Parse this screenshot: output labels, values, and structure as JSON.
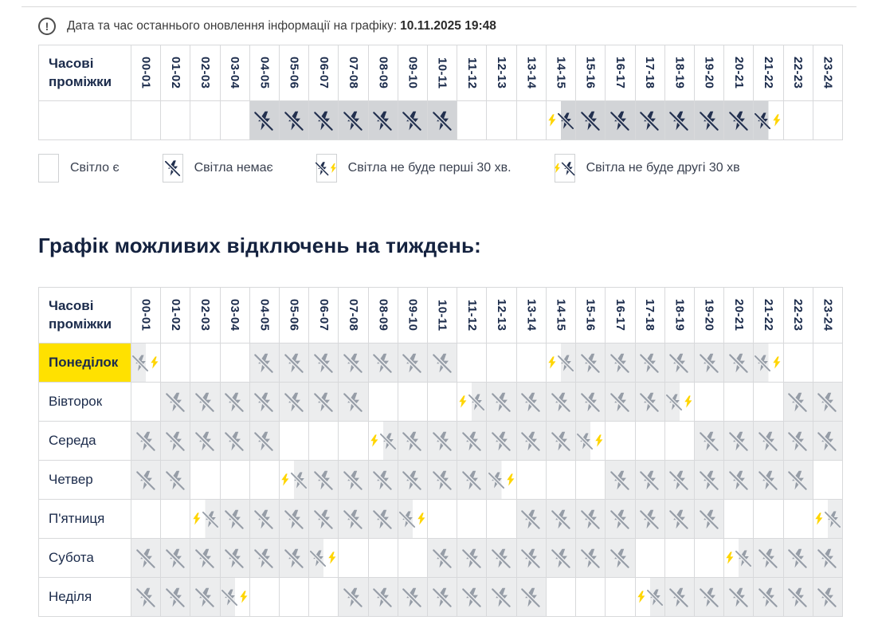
{
  "info": {
    "icon": "info-exclamation-icon",
    "label": "Дата та час останнього оновлення інформації на графіку:",
    "datetime": "10.11.2025 19:48"
  },
  "time_header_label": "Часові проміжки",
  "time_slots": [
    "00-01",
    "01-02",
    "02-03",
    "03-04",
    "04-05",
    "05-06",
    "06-07",
    "07-08",
    "08-09",
    "09-10",
    "10-11",
    "11-12",
    "12-13",
    "13-14",
    "14-15",
    "15-16",
    "16-17",
    "17-18",
    "18-19",
    "19-20",
    "20-21",
    "21-22",
    "22-23",
    "23-24"
  ],
  "state_codes": {
    "on": "light on",
    "off": "no light whole hour",
    "f30": "no light first 30 min",
    "s30": "no light second 30 min"
  },
  "today_schedule": {
    "states": [
      "on",
      "on",
      "on",
      "on",
      "off",
      "off",
      "off",
      "off",
      "off",
      "off",
      "off",
      "on",
      "on",
      "on",
      "s30",
      "off",
      "off",
      "off",
      "off",
      "off",
      "off",
      "f30",
      "on",
      "on"
    ]
  },
  "legend": [
    {
      "state": "on",
      "label": "Світло є"
    },
    {
      "state": "off",
      "label": "Світла немає"
    },
    {
      "state": "f30",
      "label": "Світла не буде перші 30 хв."
    },
    {
      "state": "s30",
      "label": "Світла не буде другі 30 хв"
    }
  ],
  "week_title": "Графік можливих відключень на тиждень:",
  "week_schedule": {
    "days": [
      {
        "label": "Понеділок",
        "highlighted": true,
        "states": [
          "f30",
          "on",
          "on",
          "on",
          "off",
          "off",
          "off",
          "off",
          "off",
          "off",
          "off",
          "on",
          "on",
          "on",
          "s30",
          "off",
          "off",
          "off",
          "off",
          "off",
          "off",
          "f30",
          "on",
          "on"
        ]
      },
      {
        "label": "Вівторок",
        "highlighted": false,
        "states": [
          "on",
          "off",
          "off",
          "off",
          "off",
          "off",
          "off",
          "off",
          "on",
          "on",
          "on",
          "s30",
          "off",
          "off",
          "off",
          "off",
          "off",
          "off",
          "f30",
          "on",
          "on",
          "on",
          "off",
          "off"
        ]
      },
      {
        "label": "Середа",
        "highlighted": false,
        "states": [
          "off",
          "off",
          "off",
          "off",
          "off",
          "on",
          "on",
          "on",
          "s30",
          "off",
          "off",
          "off",
          "off",
          "off",
          "off",
          "f30",
          "on",
          "on",
          "on",
          "off",
          "off",
          "off",
          "off",
          "off"
        ]
      },
      {
        "label": "Четвер",
        "highlighted": false,
        "states": [
          "off",
          "off",
          "on",
          "on",
          "on",
          "s30",
          "off",
          "off",
          "off",
          "off",
          "off",
          "off",
          "f30",
          "on",
          "on",
          "on",
          "off",
          "off",
          "off",
          "off",
          "off",
          "off",
          "off",
          "on"
        ]
      },
      {
        "label": "П'ятниця",
        "highlighted": false,
        "states": [
          "on",
          "on",
          "s30",
          "off",
          "off",
          "off",
          "off",
          "off",
          "off",
          "f30",
          "on",
          "on",
          "on",
          "off",
          "off",
          "off",
          "off",
          "off",
          "off",
          "off",
          "on",
          "on",
          "on",
          "s30"
        ]
      },
      {
        "label": "Субота",
        "highlighted": false,
        "states": [
          "off",
          "off",
          "off",
          "off",
          "off",
          "off",
          "f30",
          "on",
          "on",
          "on",
          "off",
          "off",
          "off",
          "off",
          "off",
          "off",
          "off",
          "on",
          "on",
          "on",
          "s30",
          "off",
          "off",
          "off"
        ]
      },
      {
        "label": "Неділя",
        "highlighted": false,
        "states": [
          "off",
          "off",
          "off",
          "f30",
          "on",
          "on",
          "on",
          "off",
          "off",
          "off",
          "off",
          "off",
          "off",
          "off",
          "on",
          "on",
          "on",
          "s30",
          "off",
          "off",
          "off",
          "off",
          "off",
          "off"
        ]
      }
    ]
  },
  "colors": {
    "accent_yellow": "#FFD500",
    "highlight_yellow": "#FFE100",
    "navy_text": "#1B2B4B",
    "icon_dark": "#22304F",
    "icon_gray": "#969DA7",
    "cell_gray_dark": "#D2D4D7",
    "cell_gray_light": "#ECEDEE",
    "border_gray": "#D8D9DB"
  }
}
